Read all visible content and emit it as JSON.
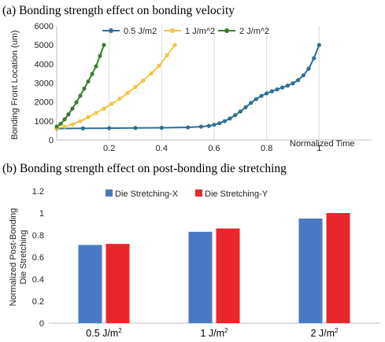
{
  "captions": {
    "a": "(a) Bonding strength effect on bonding velocity",
    "b": "(b) Bonding strength effect on post-bonding die stretching"
  },
  "chart_data": [
    {
      "type": "line",
      "title": "(a) Bonding strength effect on bonding velocity",
      "xlabel": "Normalized Time",
      "ylabel": "Bonding Front Location (um)",
      "xlim": [
        0,
        1.2
      ],
      "ylim": [
        0,
        6000
      ],
      "xticks": [
        "0.2",
        "0.4",
        "0.6",
        "0.8",
        "1"
      ],
      "yticks": [
        "0",
        "1000",
        "2000",
        "3000",
        "4000",
        "5000",
        "6000"
      ],
      "xtick_values": [
        0.2,
        0.4,
        0.6,
        0.8,
        1.0
      ],
      "ytick_values": [
        0,
        1000,
        2000,
        3000,
        4000,
        5000,
        6000
      ],
      "grid": "vertical",
      "legend": "top",
      "series": [
        {
          "name": "0.5 J/m2",
          "color": "#2e6f95",
          "x": [
            0.0,
            0.1,
            0.2,
            0.3,
            0.4,
            0.5,
            0.55,
            0.58,
            0.6,
            0.62,
            0.64,
            0.66,
            0.68,
            0.7,
            0.72,
            0.74,
            0.76,
            0.78,
            0.8,
            0.82,
            0.84,
            0.86,
            0.88,
            0.9,
            0.92,
            0.94,
            0.96,
            0.98,
            1.0
          ],
          "y": [
            600,
            610,
            620,
            630,
            640,
            660,
            700,
            740,
            800,
            880,
            990,
            1130,
            1300,
            1500,
            1720,
            1950,
            2150,
            2320,
            2450,
            2560,
            2660,
            2760,
            2860,
            2980,
            3150,
            3400,
            3750,
            4300,
            5000
          ]
        },
        {
          "name": "1 J/m^2",
          "color": "#f4c542",
          "x": [
            0.0,
            0.03,
            0.06,
            0.09,
            0.12,
            0.15,
            0.18,
            0.21,
            0.24,
            0.27,
            0.3,
            0.33,
            0.36,
            0.39,
            0.42,
            0.45
          ],
          "y": [
            620,
            700,
            820,
            990,
            1200,
            1420,
            1650,
            1900,
            2170,
            2470,
            2790,
            3130,
            3500,
            3900,
            4450,
            5000
          ]
        },
        {
          "name": "2 J/m^2",
          "color": "#3c7d32",
          "x": [
            0.0,
            0.015,
            0.03,
            0.045,
            0.06,
            0.075,
            0.09,
            0.105,
            0.12,
            0.135,
            0.15,
            0.165,
            0.18
          ],
          "y": [
            700,
            850,
            1080,
            1350,
            1650,
            1980,
            2330,
            2700,
            3080,
            3470,
            3880,
            4420,
            5000
          ]
        }
      ]
    },
    {
      "type": "bar",
      "title": "(b) Bonding strength effect on post-bonding die stretching",
      "ylabel": "Normalized Post-Bonding Die Stretching",
      "categories": [
        "0.5 J/m",
        "1 J/m",
        "2 J/m"
      ],
      "category_superscript": "2",
      "ylim": [
        0,
        1.2
      ],
      "yticks": [
        "0",
        "0.2",
        "0.4",
        "0.6",
        "0.8",
        "1",
        "1.2"
      ],
      "ytick_values": [
        0,
        0.2,
        0.4,
        0.6,
        0.8,
        1.0,
        1.2
      ],
      "legend": "top",
      "series": [
        {
          "name": "Die Stretching-X",
          "color": "#4a78c2",
          "values": [
            0.71,
            0.83,
            0.95
          ]
        },
        {
          "name": "Die Stretching-Y",
          "color": "#e8262b",
          "values": [
            0.72,
            0.86,
            1.0
          ]
        }
      ]
    }
  ]
}
